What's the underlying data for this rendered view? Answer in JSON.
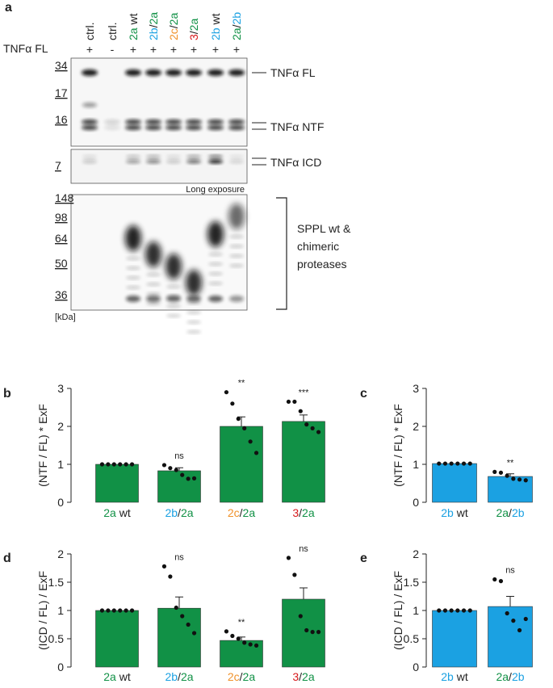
{
  "blot": {
    "panel": "a",
    "row_label": "TNFα FL",
    "lanes": [
      {
        "label": [
          {
            "text": "ctrl."
          }
        ],
        "sign": "+"
      },
      {
        "label": [
          {
            "text": "ctrl."
          }
        ],
        "sign": "-"
      },
      {
        "label": [
          {
            "text": "2a",
            "color": "#119146"
          },
          {
            "text": " wt"
          }
        ],
        "sign": "+"
      },
      {
        "label": [
          {
            "text": "2b",
            "color": "#1ba1e2"
          },
          {
            "text": "/"
          },
          {
            "text": "2a",
            "color": "#119146"
          }
        ],
        "sign": "+"
      },
      {
        "label": [
          {
            "text": "2c",
            "color": "#f0922b"
          },
          {
            "text": "/"
          },
          {
            "text": "2a",
            "color": "#119146"
          }
        ],
        "sign": "+"
      },
      {
        "label": [
          {
            "text": "3",
            "color": "#d7191c"
          },
          {
            "text": "/"
          },
          {
            "text": "2a",
            "color": "#119146"
          }
        ],
        "sign": "+"
      },
      {
        "label": [
          {
            "text": "2b",
            "color": "#1ba1e2"
          },
          {
            "text": " wt"
          }
        ],
        "sign": "+"
      },
      {
        "label": [
          {
            "text": "2a",
            "color": "#119146"
          },
          {
            "text": "/"
          },
          {
            "text": "2b",
            "color": "#1ba1e2"
          }
        ],
        "sign": "+"
      }
    ],
    "markers": [
      "34",
      "17",
      "16",
      "7",
      "148",
      "98",
      "64",
      "50",
      "36"
    ],
    "unit": "[kDa]",
    "exposure_note": "Long exposure",
    "band_labels": [
      "TNFα FL",
      "TNFα NTF",
      "TNFα ICD"
    ],
    "protease_label": [
      "SPPL wt &",
      "chimeric",
      "proteases"
    ]
  },
  "chart_data": [
    {
      "type": "bar",
      "panel": "b",
      "ylabel": "(NTF / FL) * ExF",
      "color": "#119146",
      "categories": [
        [
          {
            "text": "2a",
            "color": "#119146"
          },
          {
            "text": " wt"
          }
        ],
        [
          {
            "text": "2b",
            "color": "#1ba1e2"
          },
          {
            "text": "/"
          },
          {
            "text": "2a",
            "color": "#119146"
          }
        ],
        [
          {
            "text": "2c",
            "color": "#f0922b"
          },
          {
            "text": "/"
          },
          {
            "text": "2a",
            "color": "#119146"
          }
        ],
        [
          {
            "text": "3",
            "color": "#d7191c"
          },
          {
            "text": "/"
          },
          {
            "text": "2a",
            "color": "#119146"
          }
        ]
      ],
      "values": [
        1,
        0.83,
        2.0,
        2.13
      ],
      "errors": [
        0,
        0.08,
        0.25,
        0.17
      ],
      "points": [
        [
          1,
          1,
          1,
          1,
          1,
          1
        ],
        [
          0.98,
          0.9,
          0.85,
          0.72,
          0.62,
          0.63
        ],
        [
          2.9,
          2.6,
          2.2,
          1.95,
          1.6,
          1.3
        ],
        [
          2.65,
          2.65,
          2.4,
          2.05,
          1.95,
          1.85
        ]
      ],
      "annotations": [
        null,
        "ns",
        "**",
        "***"
      ],
      "ylim": [
        0,
        3
      ],
      "yticks": [
        0,
        1,
        2,
        3
      ]
    },
    {
      "type": "bar",
      "panel": "c",
      "ylabel": "(NTF / FL) * ExF",
      "color": "#1ba1e2",
      "categories": [
        [
          {
            "text": "2b",
            "color": "#1ba1e2"
          },
          {
            "text": " wt"
          }
        ],
        [
          {
            "text": "2a",
            "color": "#119146"
          },
          {
            "text": "/"
          },
          {
            "text": "2b",
            "color": "#1ba1e2"
          }
        ]
      ],
      "values": [
        1.02,
        0.68
      ],
      "errors": [
        0,
        0.07
      ],
      "points": [
        [
          1.02,
          1.02,
          1.02,
          1.02,
          1.02,
          1.02
        ],
        [
          0.8,
          0.78,
          0.7,
          0.62,
          0.6,
          0.58
        ]
      ],
      "annotations": [
        null,
        "**"
      ],
      "ylim": [
        0,
        3
      ],
      "yticks": [
        0,
        1,
        2,
        3
      ]
    },
    {
      "type": "bar",
      "panel": "d",
      "ylabel": "(ICD / FL) / ExF",
      "color": "#119146",
      "categories": [
        [
          {
            "text": "2a",
            "color": "#119146"
          },
          {
            "text": " wt"
          }
        ],
        [
          {
            "text": "2b",
            "color": "#1ba1e2"
          },
          {
            "text": "/"
          },
          {
            "text": "2a",
            "color": "#119146"
          }
        ],
        [
          {
            "text": "2c",
            "color": "#f0922b"
          },
          {
            "text": "/"
          },
          {
            "text": "2a",
            "color": "#119146"
          }
        ],
        [
          {
            "text": "3",
            "color": "#d7191c"
          },
          {
            "text": "/"
          },
          {
            "text": "2a",
            "color": "#119146"
          }
        ]
      ],
      "values": [
        1,
        1.04,
        0.47,
        1.2
      ],
      "errors": [
        0,
        0.2,
        0.06,
        0.2
      ],
      "points": [
        [
          1,
          1,
          1,
          1,
          1,
          1
        ],
        [
          1.78,
          1.6,
          1.05,
          0.9,
          0.75,
          0.6
        ],
        [
          0.63,
          0.55,
          0.5,
          0.43,
          0.4,
          0.38
        ],
        [
          1.93,
          1.63,
          0.9,
          0.65,
          0.62,
          0.62
        ]
      ],
      "annotations": [
        null,
        "ns",
        "**",
        "ns"
      ],
      "ylim": [
        0,
        2
      ],
      "yticks": [
        0,
        0.5,
        1,
        1.5,
        2
      ]
    },
    {
      "type": "bar",
      "panel": "e",
      "ylabel": "(ICD / FL) / ExF",
      "color": "#1ba1e2",
      "categories": [
        [
          {
            "text": "2b",
            "color": "#1ba1e2"
          },
          {
            "text": " wt"
          }
        ],
        [
          {
            "text": "2a",
            "color": "#119146"
          },
          {
            "text": "/"
          },
          {
            "text": "2b",
            "color": "#1ba1e2"
          }
        ]
      ],
      "values": [
        1.0,
        1.07
      ],
      "errors": [
        0,
        0.18
      ],
      "points": [
        [
          1,
          1,
          1,
          1,
          1,
          1
        ],
        [
          1.55,
          1.52,
          0.95,
          0.82,
          0.65,
          0.85
        ]
      ],
      "annotations": [
        null,
        "ns"
      ],
      "ylim": [
        0,
        2
      ],
      "yticks": [
        0,
        0.5,
        1,
        1.5,
        2
      ]
    }
  ]
}
